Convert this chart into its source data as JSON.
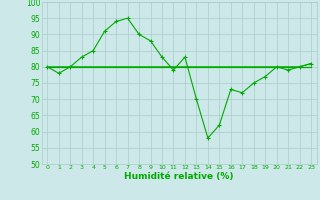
{
  "xlabel": "Humidité relative (%)",
  "bg_color": "#cce8e8",
  "grid_color": "#aacccc",
  "line_color": "#00aa00",
  "xlim": [
    -0.5,
    23.5
  ],
  "ylim": [
    50,
    100
  ],
  "yticks": [
    50,
    55,
    60,
    65,
    70,
    75,
    80,
    85,
    90,
    95,
    100
  ],
  "xticks": [
    0,
    1,
    2,
    3,
    4,
    5,
    6,
    7,
    8,
    9,
    10,
    11,
    12,
    13,
    14,
    15,
    16,
    17,
    18,
    19,
    20,
    21,
    22,
    23
  ],
  "flat_lines": [
    [
      80,
      80,
      80,
      80,
      80,
      80,
      80,
      80,
      80,
      80,
      80,
      80,
      80,
      80,
      80,
      80,
      80,
      80,
      80,
      80,
      80,
      80,
      80,
      80
    ],
    [
      80,
      80,
      80,
      80,
      80,
      80,
      80,
      80,
      80,
      80,
      80,
      80,
      80,
      80,
      80,
      80,
      80,
      80,
      80,
      80,
      80,
      80,
      80,
      81
    ],
    [
      80,
      80,
      80,
      80,
      80,
      80,
      80,
      80,
      80,
      80,
      80,
      80,
      80,
      80,
      80,
      80,
      80,
      80,
      80,
      80,
      80,
      80,
      80,
      80
    ]
  ],
  "volatile_x": [
    0,
    1,
    2,
    3,
    4,
    5,
    6,
    7,
    8,
    9,
    10,
    11,
    12,
    13,
    14,
    15,
    16,
    17,
    18,
    19,
    20,
    21,
    22,
    23
  ],
  "volatile_y": [
    80,
    78,
    80,
    83,
    85,
    91,
    94,
    95,
    90,
    88,
    83,
    79,
    83,
    70,
    58,
    62,
    73,
    72,
    75,
    77,
    80,
    79,
    80,
    81
  ]
}
